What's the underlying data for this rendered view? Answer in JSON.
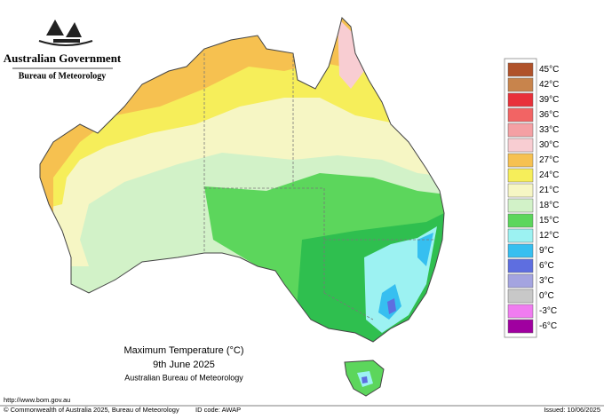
{
  "header": {
    "government": "Australian Government",
    "agency": "Bureau of Meteorology"
  },
  "map": {
    "title": "Maximum Temperature (°C)",
    "date": "9th June 2025",
    "source": "Australian Bureau of Meteorology"
  },
  "legend": [
    {
      "label": "45°C",
      "color": "#b0522a"
    },
    {
      "label": "42°C",
      "color": "#c8844c"
    },
    {
      "label": "39°C",
      "color": "#e8303a"
    },
    {
      "label": "36°C",
      "color": "#f26464"
    },
    {
      "label": "33°C",
      "color": "#f4a0a4"
    },
    {
      "label": "30°C",
      "color": "#f8cdd2"
    },
    {
      "label": "27°C",
      "color": "#f6c150"
    },
    {
      "label": "24°C",
      "color": "#f6ee5a"
    },
    {
      "label": "21°C",
      "color": "#f6f6c4"
    },
    {
      "label": "18°C",
      "color": "#d2f2c8"
    },
    {
      "label": "15°C",
      "color": "#5cd65c"
    },
    {
      "label": "12°C",
      "color": "#9cf2f2"
    },
    {
      "label": "9°C",
      "color": "#36bff0"
    },
    {
      "label": "6°C",
      "color": "#5e6ee0"
    },
    {
      "label": "3°C",
      "color": "#a4a4e0"
    },
    {
      "label": "0°C",
      "color": "#c8c8c8"
    },
    {
      "label": "-3°C",
      "color": "#f07cf0"
    },
    {
      "label": "-6°C",
      "color": "#a000a0"
    }
  ],
  "footer": {
    "url": "http://www.bom.gov.au",
    "copyright": "© Commonwealth of Australia 2025, Bureau of Meteorology",
    "id_code": "ID code: AWAP",
    "issued": "Issued: 10/06/2025"
  }
}
